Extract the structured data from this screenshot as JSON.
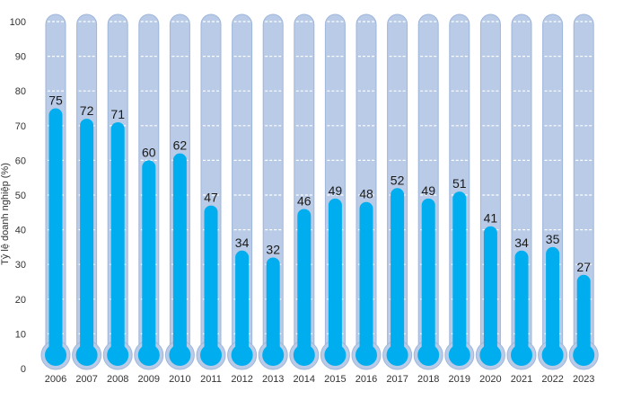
{
  "chart_data": {
    "type": "bar",
    "title": "",
    "xlabel": "",
    "ylabel": "Tỷ lệ doanh nghiệp (%)",
    "ylim": [
      0,
      100
    ],
    "yticks": [
      0,
      10,
      20,
      30,
      40,
      50,
      60,
      70,
      80,
      90,
      100
    ],
    "grid": true,
    "style": "thermometer",
    "categories": [
      "2006",
      "2007",
      "2008",
      "2009",
      "2010",
      "2011",
      "2012",
      "2013",
      "2014",
      "2015",
      "2016",
      "2017",
      "2018",
      "2019",
      "2020",
      "2021",
      "2022",
      "2023"
    ],
    "values": [
      75,
      72,
      71,
      60,
      62,
      47,
      34,
      32,
      46,
      49,
      48,
      52,
      49,
      51,
      41,
      34,
      35,
      27
    ],
    "colors": {
      "fill": "#00aeef",
      "tube": "#b9cbe6",
      "tube_edge": "#9fb6db",
      "grid": "#ffffff",
      "text": "#333333"
    }
  }
}
